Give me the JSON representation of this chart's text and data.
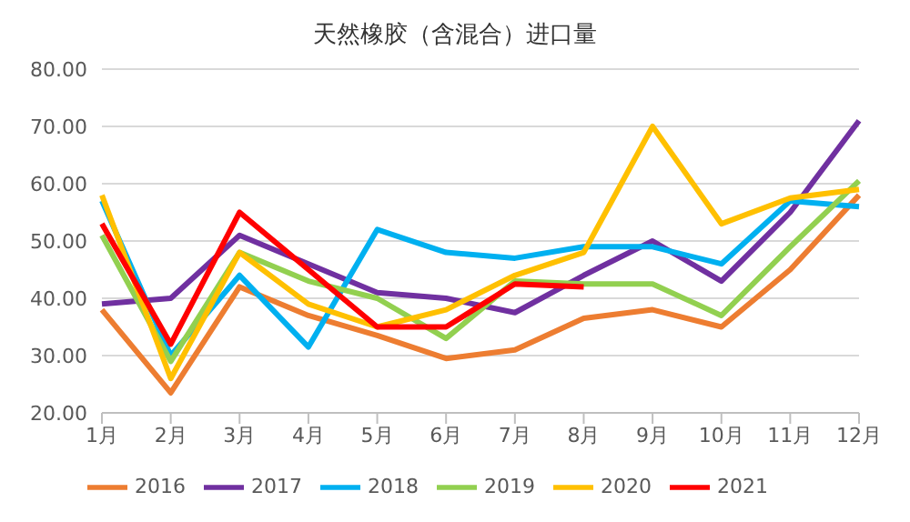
{
  "chart_data": {
    "type": "line",
    "title": "天然橡胶（含混合）进口量",
    "categories": [
      "1月",
      "2月",
      "3月",
      "4月",
      "5月",
      "6月",
      "7月",
      "8月",
      "9月",
      "10月",
      "11月",
      "12月"
    ],
    "series": [
      {
        "name": "2016",
        "color": "#ed7d31",
        "values": [
          38,
          23.5,
          42,
          37,
          33.5,
          29.5,
          31,
          36.5,
          38,
          35,
          45,
          58
        ]
      },
      {
        "name": "2017",
        "color": "#7030a0",
        "values": [
          39,
          40,
          51,
          46,
          41,
          40,
          37.5,
          44,
          50,
          43,
          55,
          71
        ]
      },
      {
        "name": "2018",
        "color": "#00b0f0",
        "values": [
          57,
          30,
          44,
          31.5,
          52,
          48,
          47,
          49,
          49,
          46,
          57,
          56
        ]
      },
      {
        "name": "2019",
        "color": "#92d050",
        "values": [
          51,
          29,
          48,
          43,
          40,
          33,
          43,
          42.5,
          42.5,
          37,
          49,
          60.5
        ]
      },
      {
        "name": "2020",
        "color": "#ffc000",
        "values": [
          58,
          26,
          48,
          39,
          35,
          38,
          44,
          48,
          70,
          53,
          57.5,
          59
        ]
      },
      {
        "name": "2021",
        "color": "#ff0000",
        "values": [
          53,
          32,
          55,
          45,
          35,
          35,
          42.5,
          42,
          null,
          null,
          null,
          null
        ]
      }
    ],
    "ylim": [
      20,
      80
    ],
    "yticks": [
      {
        "value": 20,
        "label": "20.00"
      },
      {
        "value": 30,
        "label": "30.00"
      },
      {
        "value": 40,
        "label": "40.00"
      },
      {
        "value": 50,
        "label": "50.00"
      },
      {
        "value": 60,
        "label": "60.00"
      },
      {
        "value": 70,
        "label": "70.00"
      },
      {
        "value": 80,
        "label": "80.00"
      }
    ],
    "grid": "y",
    "legend": "bottom",
    "marker": "none",
    "line_style": "solid"
  }
}
